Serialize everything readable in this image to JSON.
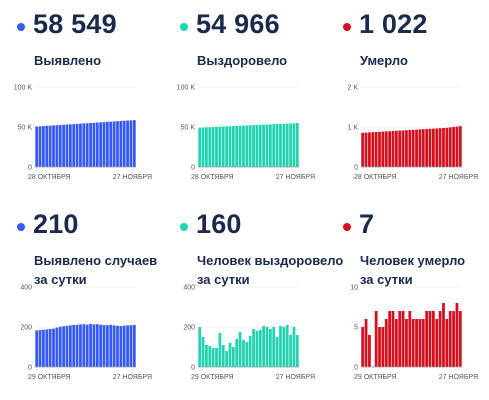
{
  "panels": [
    {
      "value": "58 549",
      "label_lines": [
        "Выявлено"
      ],
      "color": "#3559f5"
    },
    {
      "value": "54 966",
      "label_lines": [
        "Выздоровело"
      ],
      "color": "#22d3b2"
    },
    {
      "value": "1 022",
      "label_lines": [
        "Умерло"
      ],
      "color": "#d40f1e"
    },
    {
      "value": "210",
      "label_lines": [
        "Выявлено случаев",
        "за сутки"
      ],
      "color": "#3559f5"
    },
    {
      "value": "160",
      "label_lines": [
        "Человек выздоровело",
        "за сутки"
      ],
      "color": "#22d3b2"
    },
    {
      "value": "7",
      "label_lines": [
        "Человек умерло",
        "за сутки"
      ],
      "color": "#d40f1e"
    }
  ],
  "chart_data": [
    {
      "type": "bar",
      "yticks": [
        "0",
        "50 K",
        "100 K"
      ],
      "ylim": [
        0,
        100000
      ],
      "xlabels": [
        "28 ОКТЯБРЯ",
        "27 НОЯБРЯ"
      ],
      "color": "#3559f5",
      "values": [
        50500,
        50800,
        51100,
        51400,
        51700,
        51900,
        52200,
        52500,
        52800,
        53100,
        53300,
        53600,
        53900,
        54200,
        54500,
        54700,
        55000,
        55300,
        55600,
        55900,
        56100,
        56400,
        56700,
        57000,
        57300,
        57500,
        57800,
        58100,
        58300,
        58549
      ]
    },
    {
      "type": "bar",
      "yticks": [
        "0",
        "50 K",
        "100 K"
      ],
      "ylim": [
        0,
        100000
      ],
      "xlabels": [
        "28 ОКТЯБРЯ",
        "27 НОЯБРЯ"
      ],
      "color": "#22d3b2",
      "values": [
        49000,
        49300,
        49500,
        49700,
        49900,
        50100,
        50300,
        50500,
        50700,
        50900,
        51100,
        51300,
        51500,
        51700,
        51900,
        52100,
        52300,
        52500,
        52700,
        52900,
        53100,
        53300,
        53500,
        53700,
        53900,
        54100,
        54300,
        54500,
        54700,
        54966
      ]
    },
    {
      "type": "bar",
      "yticks": [
        "0",
        "1 K",
        "2 K"
      ],
      "ylim": [
        0,
        2000
      ],
      "xlabels": [
        "28 ОКТЯБРЯ",
        "27 НОЯБРЯ"
      ],
      "color": "#d40f1e",
      "values": [
        855,
        860,
        865,
        870,
        875,
        880,
        885,
        890,
        895,
        900,
        905,
        910,
        915,
        920,
        925,
        930,
        935,
        940,
        945,
        950,
        955,
        960,
        965,
        970,
        975,
        980,
        990,
        1000,
        1010,
        1022
      ]
    },
    {
      "type": "bar",
      "yticks": [
        "0",
        "200",
        "400"
      ],
      "ylim": [
        0,
        400
      ],
      "xlabels": [
        "29 ОКТЯБРЯ",
        "27 НОЯБРЯ"
      ],
      "color": "#3559f5",
      "values": [
        183,
        185,
        186,
        188,
        190,
        192,
        197,
        201,
        204,
        206,
        208,
        210,
        211,
        213,
        214,
        212,
        215,
        213,
        214,
        211,
        210,
        209,
        211,
        208,
        206,
        205,
        207,
        208,
        209,
        210
      ]
    },
    {
      "type": "bar",
      "yticks": [
        "0",
        "200",
        "400"
      ],
      "ylim": [
        0,
        400
      ],
      "xlabels": [
        "29 ОКТЯБРЯ",
        "27 НОЯБРЯ"
      ],
      "color": "#22d3b2",
      "values": [
        200,
        150,
        110,
        105,
        95,
        95,
        170,
        110,
        80,
        120,
        100,
        140,
        175,
        135,
        125,
        155,
        190,
        180,
        185,
        205,
        200,
        190,
        200,
        150,
        205,
        200,
        210,
        160,
        200,
        160
      ]
    },
    {
      "type": "bar",
      "yticks": [
        "0",
        "5",
        "10"
      ],
      "ylim": [
        0,
        10
      ],
      "xlabels": [
        "29 ОКТЯБРЯ",
        "27 НОЯБРЯ"
      ],
      "color": "#d40f1e",
      "values": [
        5,
        6,
        4,
        0,
        7,
        5,
        5,
        6,
        7,
        7,
        6,
        7,
        7,
        6,
        7,
        6,
        6,
        6,
        6,
        7,
        7,
        7,
        6,
        7,
        8,
        6,
        7,
        7,
        8,
        7
      ]
    }
  ]
}
